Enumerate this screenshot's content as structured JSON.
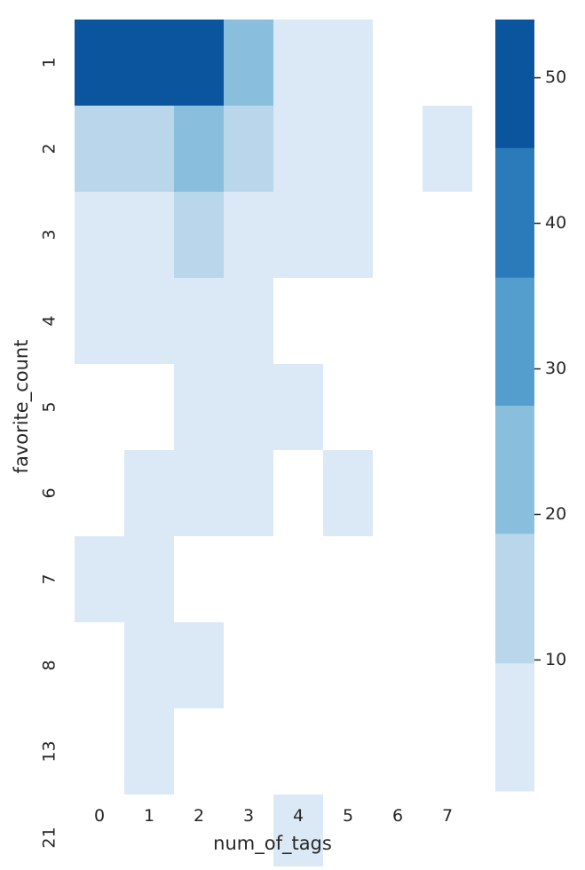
{
  "chart_data": {
    "type": "heatmap",
    "xlabel": "num_of_tags",
    "ylabel": "favorite_count",
    "x_categories": [
      "0",
      "1",
      "2",
      "3",
      "4",
      "5",
      "6",
      "7"
    ],
    "y_categories": [
      "1",
      "2",
      "3",
      "4",
      "5",
      "6",
      "7",
      "8",
      "13",
      "21"
    ],
    "values": [
      [
        54,
        54,
        54,
        20,
        2,
        2,
        null,
        null
      ],
      [
        15,
        15,
        22,
        14,
        1,
        1,
        null,
        1
      ],
      [
        3,
        3,
        14,
        2,
        1,
        1,
        null,
        null
      ],
      [
        3,
        3,
        3,
        2,
        null,
        null,
        null,
        null
      ],
      [
        null,
        null,
        2,
        2,
        1,
        null,
        null,
        null
      ],
      [
        null,
        2,
        2,
        2,
        null,
        1,
        null,
        null
      ],
      [
        1,
        1,
        null,
        null,
        null,
        null,
        null,
        null
      ],
      [
        null,
        2,
        1,
        null,
        null,
        null,
        null,
        null
      ],
      [
        null,
        1,
        null,
        null,
        null,
        null,
        null,
        null
      ],
      [
        null,
        null,
        null,
        null,
        1,
        null,
        null,
        null
      ]
    ],
    "colorbar": {
      "min": 1,
      "max": 54,
      "ticks": [
        10,
        20,
        30,
        40,
        50
      ],
      "bins": [
        {
          "from": 1,
          "to": 9.8,
          "color": "#dbe9f6"
        },
        {
          "from": 9.8,
          "to": 18.7,
          "color": "#bad6eb"
        },
        {
          "from": 18.7,
          "to": 27.5,
          "color": "#89bedc"
        },
        {
          "from": 27.5,
          "to": 36.3,
          "color": "#539ecd"
        },
        {
          "from": 36.3,
          "to": 45.2,
          "color": "#2b7bba"
        },
        {
          "from": 45.2,
          "to": 54,
          "color": "#0b559f"
        }
      ]
    },
    "grid": false,
    "legend": "colorbar-right"
  }
}
